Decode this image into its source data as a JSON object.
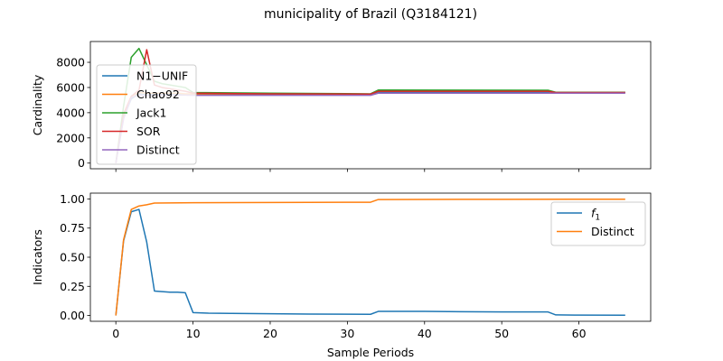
{
  "figure": {
    "title": "municipality of Brazil (Q3184121)"
  },
  "chart_data": [
    {
      "type": "line",
      "ylabel": "Cardinality",
      "xlabel": "",
      "xlim": [
        -3.3,
        69.3
      ],
      "ylim": [
        -450,
        9650
      ],
      "yticks": [
        0,
        2000,
        4000,
        6000,
        8000
      ],
      "xticks": [
        0,
        10,
        20,
        30,
        40,
        50,
        60
      ],
      "show_xtick_labels": false,
      "legend_position": "upper-left",
      "series": [
        {
          "name": "N1−UNIF",
          "color": "#1f77b4",
          "x": [
            0,
            1,
            2,
            3,
            4,
            5,
            6,
            7,
            8,
            9,
            10,
            20,
            33,
            34,
            56,
            57,
            66
          ],
          "y": [
            0,
            3600,
            5100,
            5500,
            5400,
            5450,
            5500,
            5500,
            5500,
            5480,
            5450,
            5450,
            5450,
            5650,
            5650,
            5600,
            5600
          ]
        },
        {
          "name": "Chao92",
          "color": "#ff7f0e",
          "x": [
            0,
            1,
            2,
            3,
            4,
            5,
            6,
            7,
            8,
            9,
            10,
            20,
            33,
            34,
            56,
            57,
            66
          ],
          "y": [
            0,
            3800,
            5300,
            5600,
            5550,
            5550,
            5550,
            5550,
            5550,
            5500,
            5500,
            5500,
            5480,
            5700,
            5700,
            5600,
            5600
          ]
        },
        {
          "name": "Jack1",
          "color": "#2ca02c",
          "x": [
            0,
            1,
            2,
            3,
            4,
            5,
            6,
            7,
            8,
            9,
            10,
            20,
            33,
            34,
            56,
            57,
            66
          ],
          "y": [
            0,
            4500,
            8400,
            9100,
            7800,
            6500,
            6300,
            6200,
            6100,
            6000,
            5600,
            5550,
            5500,
            5800,
            5780,
            5620,
            5620
          ]
        },
        {
          "name": "SOR",
          "color": "#d62728",
          "x": [
            0,
            1,
            2,
            3,
            4,
            5,
            6,
            7,
            8,
            9,
            10,
            20,
            33,
            34,
            56,
            57,
            66
          ],
          "y": [
            0,
            3900,
            5300,
            5800,
            9000,
            6200,
            6000,
            5900,
            5800,
            5700,
            5550,
            5500,
            5480,
            5700,
            5700,
            5600,
            5600
          ]
        },
        {
          "name": "Distinct",
          "color": "#9467bd",
          "x": [
            0,
            1,
            2,
            3,
            4,
            5,
            6,
            7,
            8,
            9,
            10,
            20,
            33,
            34,
            56,
            57,
            66
          ],
          "y": [
            0,
            3500,
            5200,
            5400,
            5350,
            5400,
            5400,
            5400,
            5400,
            5400,
            5380,
            5380,
            5380,
            5550,
            5550,
            5550,
            5550
          ]
        }
      ]
    },
    {
      "type": "line",
      "ylabel": "Indicators",
      "xlabel": "Sample Periods",
      "xlim": [
        -3.3,
        69.3
      ],
      "ylim": [
        -0.05,
        1.05
      ],
      "yticks": [
        0.0,
        0.25,
        0.5,
        0.75,
        1.0
      ],
      "ytick_labels": [
        "0.00",
        "0.25",
        "0.50",
        "0.75",
        "1.00"
      ],
      "xticks": [
        0,
        10,
        20,
        30,
        40,
        50,
        60
      ],
      "xtick_labels": [
        "0",
        "10",
        "20",
        "30",
        "40",
        "50",
        "60"
      ],
      "show_xtick_labels": true,
      "legend_position": "upper-right",
      "series": [
        {
          "name": "f1",
          "label_main": "f",
          "label_sub": "1",
          "color": "#1f77b4",
          "x": [
            0,
            1,
            2,
            3,
            4,
            5,
            6,
            7,
            8,
            9,
            10,
            12,
            15,
            20,
            25,
            33,
            34,
            40,
            50,
            56,
            57,
            60,
            66
          ],
          "y": [
            0,
            0.64,
            0.89,
            0.91,
            0.63,
            0.21,
            0.205,
            0.2,
            0.2,
            0.195,
            0.025,
            0.02,
            0.018,
            0.015,
            0.012,
            0.01,
            0.035,
            0.035,
            0.03,
            0.03,
            0.005,
            0.003,
            0.002
          ]
        },
        {
          "name": "Distinct",
          "color": "#ff7f0e",
          "x": [
            0,
            1,
            2,
            3,
            4,
            5,
            10,
            20,
            33,
            34,
            50,
            66
          ],
          "y": [
            0,
            0.65,
            0.91,
            0.94,
            0.95,
            0.965,
            0.968,
            0.97,
            0.972,
            0.995,
            0.997,
            0.998
          ]
        }
      ]
    }
  ]
}
